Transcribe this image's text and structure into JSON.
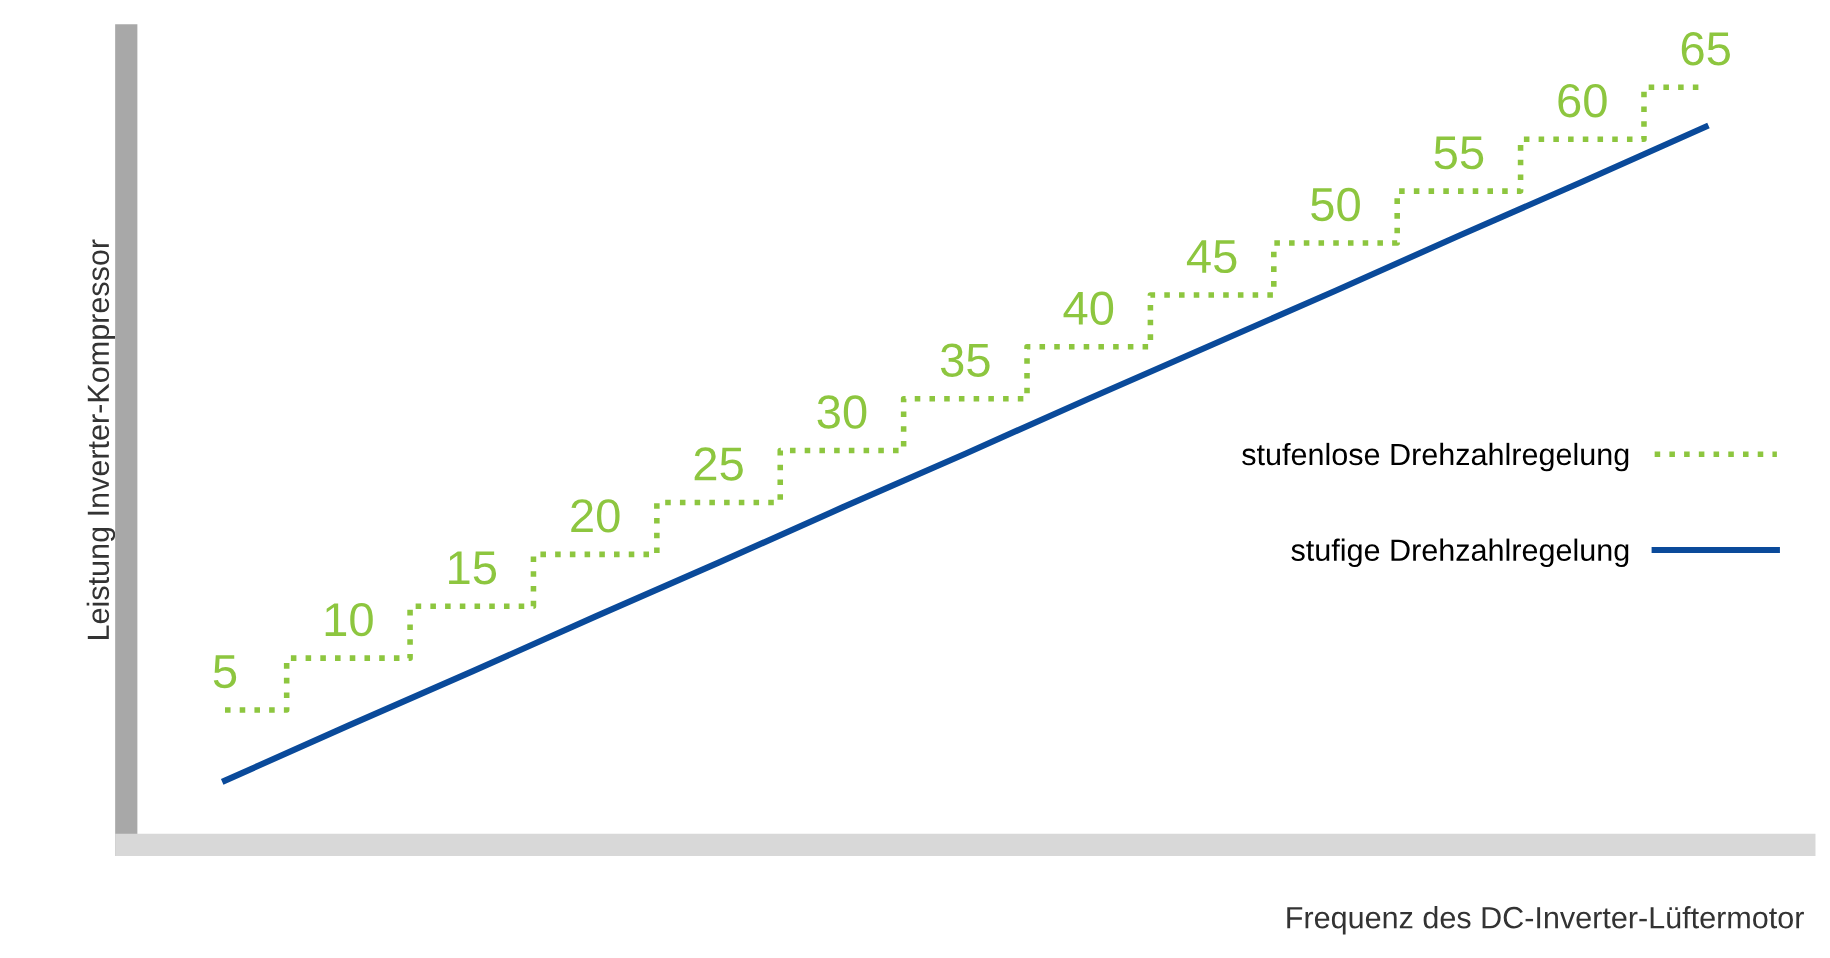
{
  "chart_data": {
    "type": "step",
    "xlabel": "Frequenz des DC-Inverter-Lüftermotor",
    "ylabel": "Leistung Inverter-Kompressor",
    "categories": [
      null,
      null,
      null,
      null,
      null,
      null,
      null,
      null,
      null,
      null,
      null,
      null,
      null
    ],
    "ylim": [
      -8,
      70
    ],
    "tick_labels": false,
    "legend": "right",
    "series": [
      {
        "name": "stufenlose Drehzahlregelung",
        "color": "#8dc63f",
        "line_style": "dotted",
        "values": [
          5,
          10,
          15,
          20,
          25,
          30,
          35,
          40,
          45,
          50,
          55,
          60,
          65
        ],
        "value_labels": [
          "5",
          "10",
          "15",
          "20",
          "25",
          "30",
          "35",
          "40",
          "45",
          "50",
          "55",
          "60",
          "65"
        ]
      },
      {
        "name": "stufige Drehzahlregelung",
        "type": "line",
        "color": "#0a4a9a",
        "line_style": "solid",
        "values": [
          -1.8,
          3.5,
          8.7,
          14.0,
          19.2,
          24.5,
          29.7,
          35.0,
          40.2,
          45.4,
          50.7,
          55.9,
          61.2
        ]
      }
    ]
  }
}
